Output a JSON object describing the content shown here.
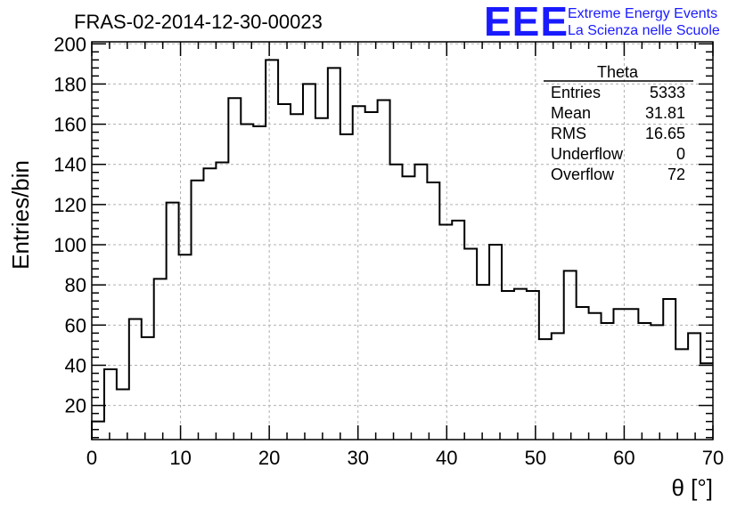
{
  "chart_data": {
    "type": "bar",
    "title": "FRAS-02-2014-12-30-00023",
    "xlabel": "θ [°]",
    "ylabel": "Entries/bin",
    "xlim": [
      0,
      70
    ],
    "ylim": [
      3,
      201
    ],
    "bin_width": 1.4,
    "x_ticks": [
      0,
      10,
      20,
      30,
      40,
      50,
      60,
      70
    ],
    "y_ticks": [
      20,
      40,
      60,
      80,
      100,
      120,
      140,
      160,
      180,
      200
    ],
    "grid": true,
    "values": [
      12,
      38,
      28,
      63,
      54,
      83,
      121,
      95,
      132,
      138,
      141,
      173,
      160,
      159,
      192,
      170,
      165,
      180,
      163,
      188,
      155,
      169,
      166,
      172,
      140,
      134,
      140,
      131,
      110,
      112,
      98,
      80,
      100,
      77,
      78,
      77,
      53,
      56,
      87,
      69,
      66,
      61,
      68,
      68,
      61,
      60,
      73,
      48,
      56,
      41
    ],
    "stats_box": {
      "name": "Theta",
      "rows": [
        {
          "label": "Entries",
          "value": "5333"
        },
        {
          "label": "Mean",
          "value": "31.81"
        },
        {
          "label": "RMS",
          "value": "16.65"
        },
        {
          "label": "Underflow",
          "value": "0"
        },
        {
          "label": "Overflow",
          "value": "72"
        }
      ]
    }
  },
  "logo": {
    "mark": "EEE",
    "line1": "Extreme Energy Events",
    "line2": "La Scienza nelle Scuole",
    "color": "#1a1aff"
  }
}
